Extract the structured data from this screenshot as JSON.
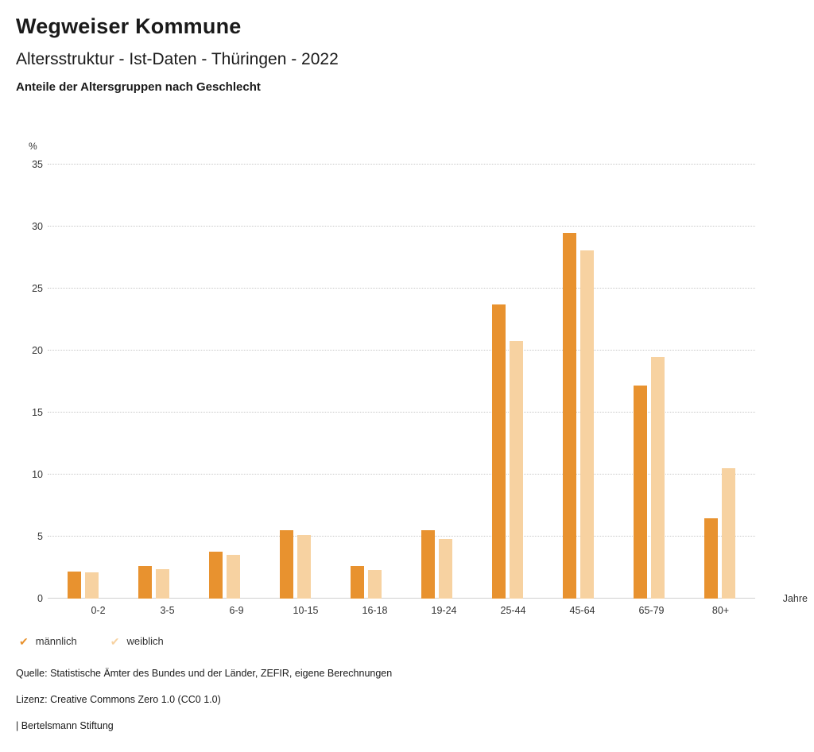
{
  "header": {
    "title": "Wegweiser Kommune",
    "subtitle": "Altersstruktur - Ist-Daten - Thüringen - 2022",
    "chart_heading": "Anteile der Altersgruppen nach Geschlecht"
  },
  "chart_data": {
    "type": "bar",
    "title": "Anteile der Altersgruppen nach Geschlecht",
    "unit_label": "%",
    "x_unit_label": "Jahre",
    "categories": [
      "0-2",
      "3-5",
      "6-9",
      "10-15",
      "16-18",
      "19-24",
      "25-44",
      "45-64",
      "65-79",
      "80+"
    ],
    "series": [
      {
        "name": "männlich",
        "color": "#e8922f",
        "values": [
          2.2,
          2.6,
          3.8,
          5.5,
          2.6,
          5.5,
          23.7,
          29.5,
          17.2,
          6.5
        ]
      },
      {
        "name": "weiblich",
        "color": "#f7d2a1",
        "values": [
          2.1,
          2.4,
          3.5,
          5.1,
          2.3,
          4.8,
          20.8,
          28.1,
          19.5,
          10.5
        ]
      }
    ],
    "ylim": [
      0,
      35
    ],
    "ytick_step": 5,
    "grid": "dotted-horizontal",
    "legend_position": "bottom"
  },
  "legend": {
    "check_icon": "✔"
  },
  "footer": {
    "source": "Quelle: Statistische Ämter des Bundes und der Länder, ZEFIR, eigene Berechnungen",
    "license": "Lizenz: Creative Commons Zero 1.0 (CC0 1.0)",
    "attribution": "| Bertelsmann Stiftung"
  }
}
